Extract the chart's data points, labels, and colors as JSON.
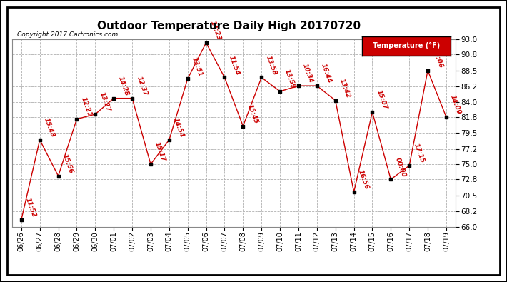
{
  "title": "Outdoor Temperature Daily High 20170720",
  "copyright": "Copyright 2017 Cartronics.com",
  "legend_label": "Temperature (°F)",
  "dates": [
    "06/26",
    "06/27",
    "06/28",
    "06/29",
    "06/30",
    "07/01",
    "07/02",
    "07/03",
    "07/04",
    "07/05",
    "07/06",
    "07/07",
    "07/08",
    "07/09",
    "07/10",
    "07/11",
    "07/12",
    "07/13",
    "07/14",
    "07/15",
    "07/16",
    "07/17",
    "07/18",
    "07/19"
  ],
  "temps": [
    67.0,
    78.5,
    73.3,
    81.5,
    82.2,
    84.5,
    84.5,
    75.0,
    78.5,
    87.3,
    92.5,
    87.5,
    80.5,
    87.5,
    85.5,
    86.3,
    86.3,
    84.2,
    71.0,
    82.5,
    72.8,
    74.8,
    88.5,
    81.8
  ],
  "times": [
    "11:52",
    "15:48",
    "15:56",
    "12:21",
    "13:27",
    "14:28",
    "12:37",
    "15:17",
    "14:54",
    "13:51",
    "14:23",
    "11:54",
    "15:45",
    "13:58",
    "13:59",
    "10:34",
    "16:44",
    "13:42",
    "16:56",
    "15:07",
    "00:00",
    "17:15",
    "15:06",
    "14:09"
  ],
  "ylim": [
    66.0,
    93.0
  ],
  "yticks": [
    66.0,
    68.2,
    70.5,
    72.8,
    75.0,
    77.2,
    79.5,
    81.8,
    84.0,
    86.2,
    88.5,
    90.8,
    93.0
  ],
  "line_color": "#cc0000",
  "marker_color": "#000000",
  "bg_color": "#ffffff",
  "grid_color": "#b0b0b0",
  "title_fontsize": 11,
  "label_color": "#cc0000",
  "label_fontsize": 6.5,
  "legend_bg": "#cc0000",
  "legend_fg": "#ffffff",
  "border_color": "#000000"
}
